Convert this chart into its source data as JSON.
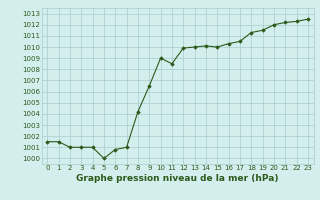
{
  "x": [
    0,
    1,
    2,
    3,
    4,
    5,
    6,
    7,
    8,
    9,
    10,
    11,
    12,
    13,
    14,
    15,
    16,
    17,
    18,
    19,
    20,
    21,
    22,
    23
  ],
  "y": [
    1001.5,
    1001.5,
    1001.0,
    1001.0,
    1001.0,
    1000.0,
    1000.8,
    1001.0,
    1004.2,
    1006.5,
    1009.0,
    1008.5,
    1009.9,
    1010.0,
    1010.1,
    1010.0,
    1010.3,
    1010.5,
    1011.3,
    1011.5,
    1012.0,
    1012.2,
    1012.3,
    1012.5
  ],
  "ylim": [
    999.5,
    1013.5
  ],
  "yticks": [
    1000,
    1001,
    1002,
    1003,
    1004,
    1005,
    1006,
    1007,
    1008,
    1009,
    1010,
    1011,
    1012,
    1013
  ],
  "xticks": [
    0,
    1,
    2,
    3,
    4,
    5,
    6,
    7,
    8,
    9,
    10,
    11,
    12,
    13,
    14,
    15,
    16,
    17,
    18,
    19,
    20,
    21,
    22,
    23
  ],
  "xlabel": "Graphe pression niveau de la mer (hPa)",
  "line_color": "#2d5a1b",
  "marker": "D",
  "marker_size": 1.8,
  "bg_color": "#d4eeee",
  "grid_color": "#a8cccc",
  "xlabel_fontsize": 6.5,
  "tick_fontsize": 5.0,
  "linewidth": 0.8
}
